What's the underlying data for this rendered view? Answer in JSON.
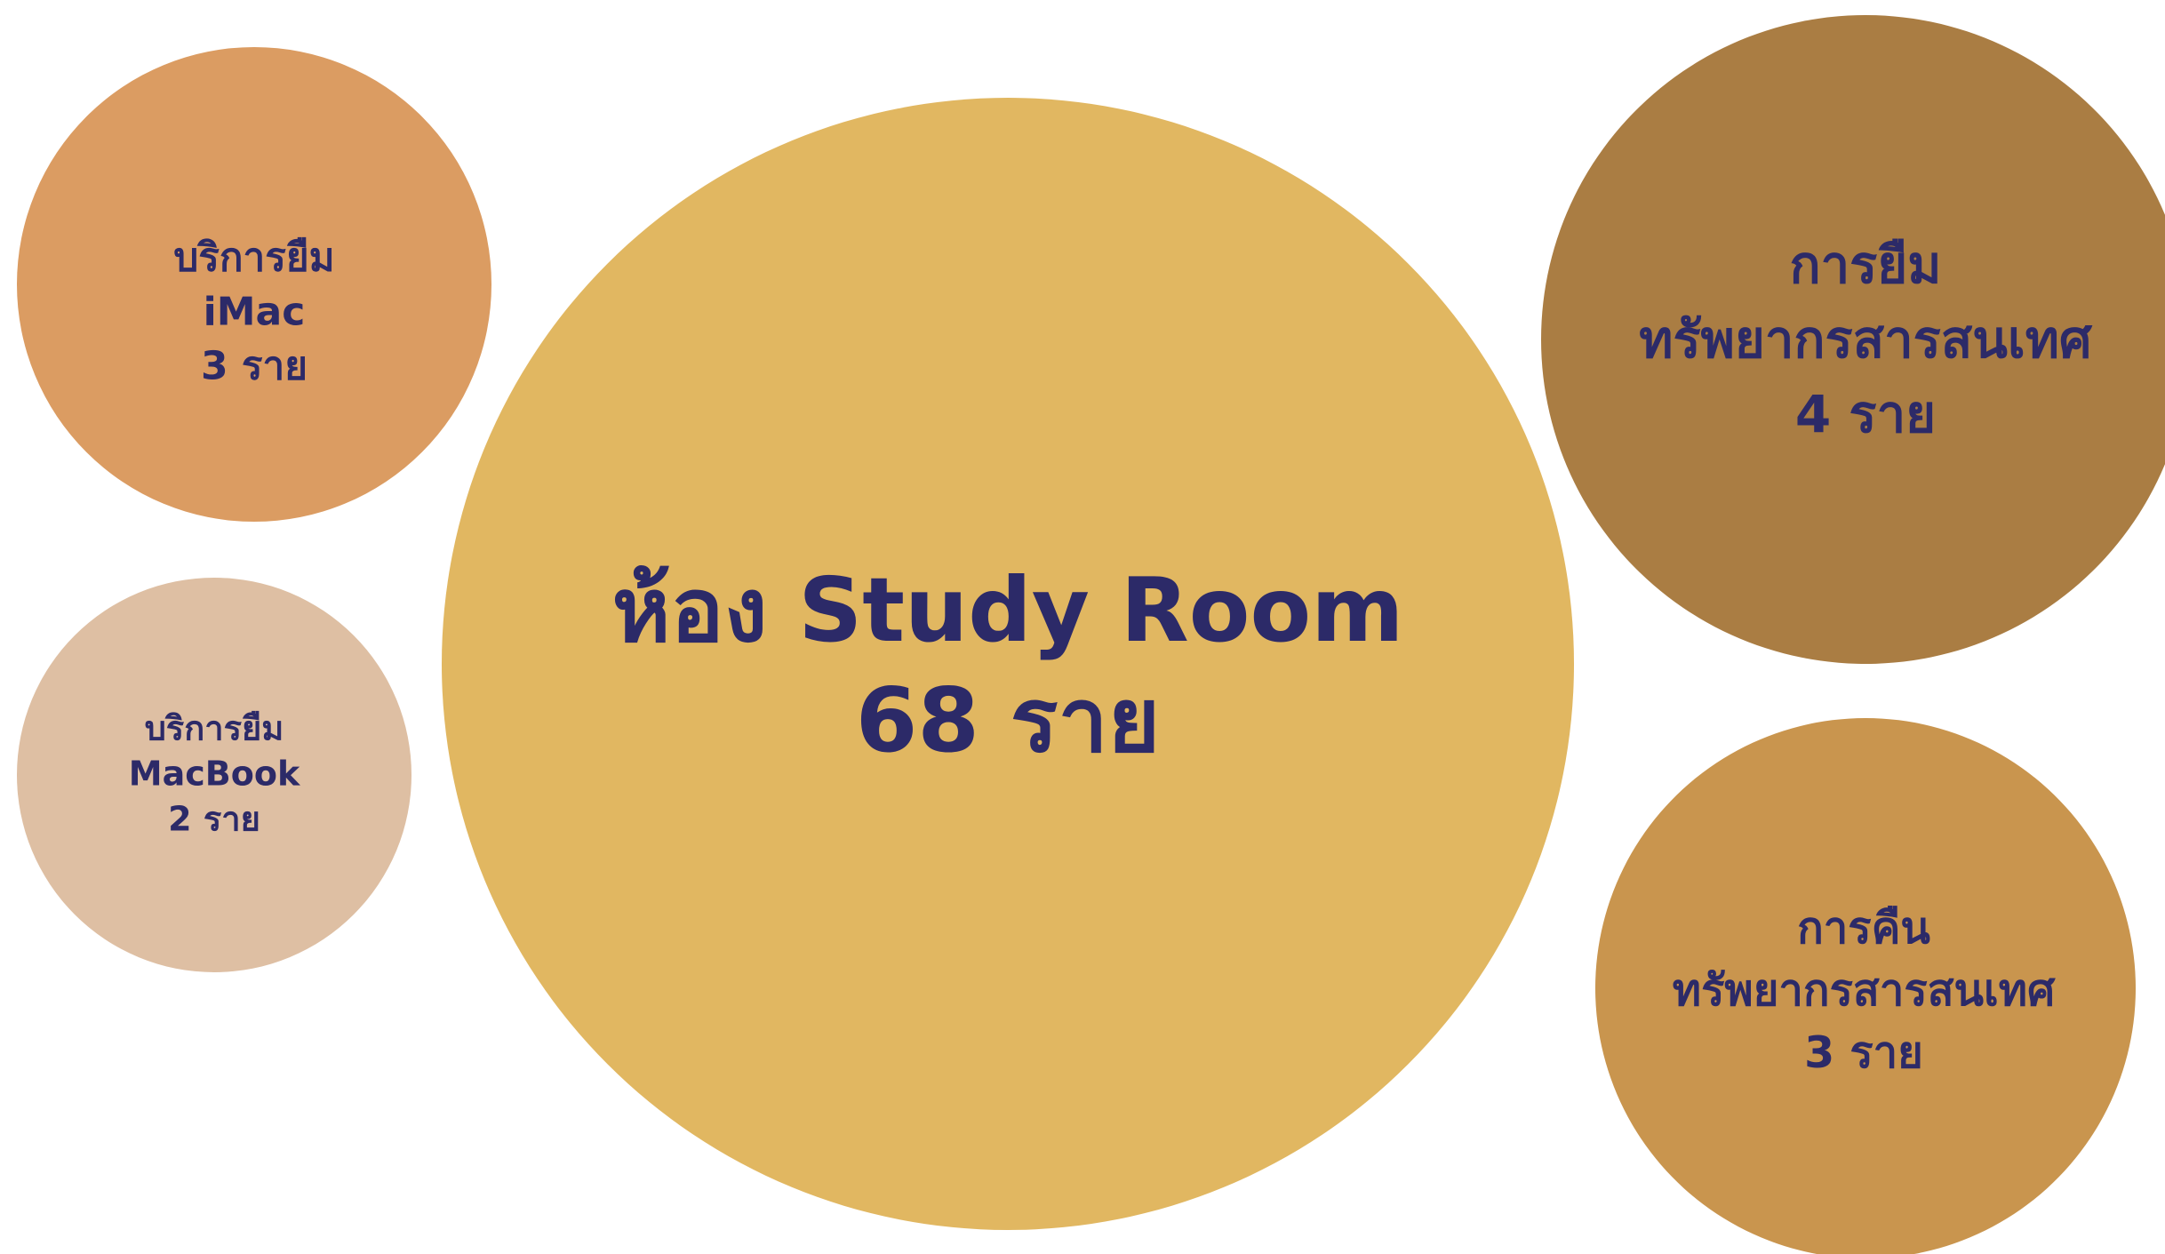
{
  "chart_data": {
    "type": "bubble",
    "text_color": "#2C2A68",
    "bubbles": [
      {
        "title_lines": [
          "ห้อง Study Room"
        ],
        "value": 68,
        "unit": "ราย",
        "color": "#E1B761"
      },
      {
        "title_lines": [
          "บริการยืม",
          "iMac"
        ],
        "value": 3,
        "unit": "ราย",
        "color": "#DB9C62"
      },
      {
        "title_lines": [
          "บริการยืม",
          "MacBook"
        ],
        "value": 2,
        "unit": "ราย",
        "color": "#DEBFA3"
      },
      {
        "title_lines": [
          "การยืม",
          "ทรัพยากรสารสนเทศ"
        ],
        "value": 4,
        "unit": "ราย",
        "color": "#AA7D43"
      },
      {
        "title_lines": [
          "การคืน",
          "ทรัพยากรสารสนเทศ"
        ],
        "value": 3,
        "unit": "ราย",
        "color": "#C9954E"
      }
    ]
  }
}
